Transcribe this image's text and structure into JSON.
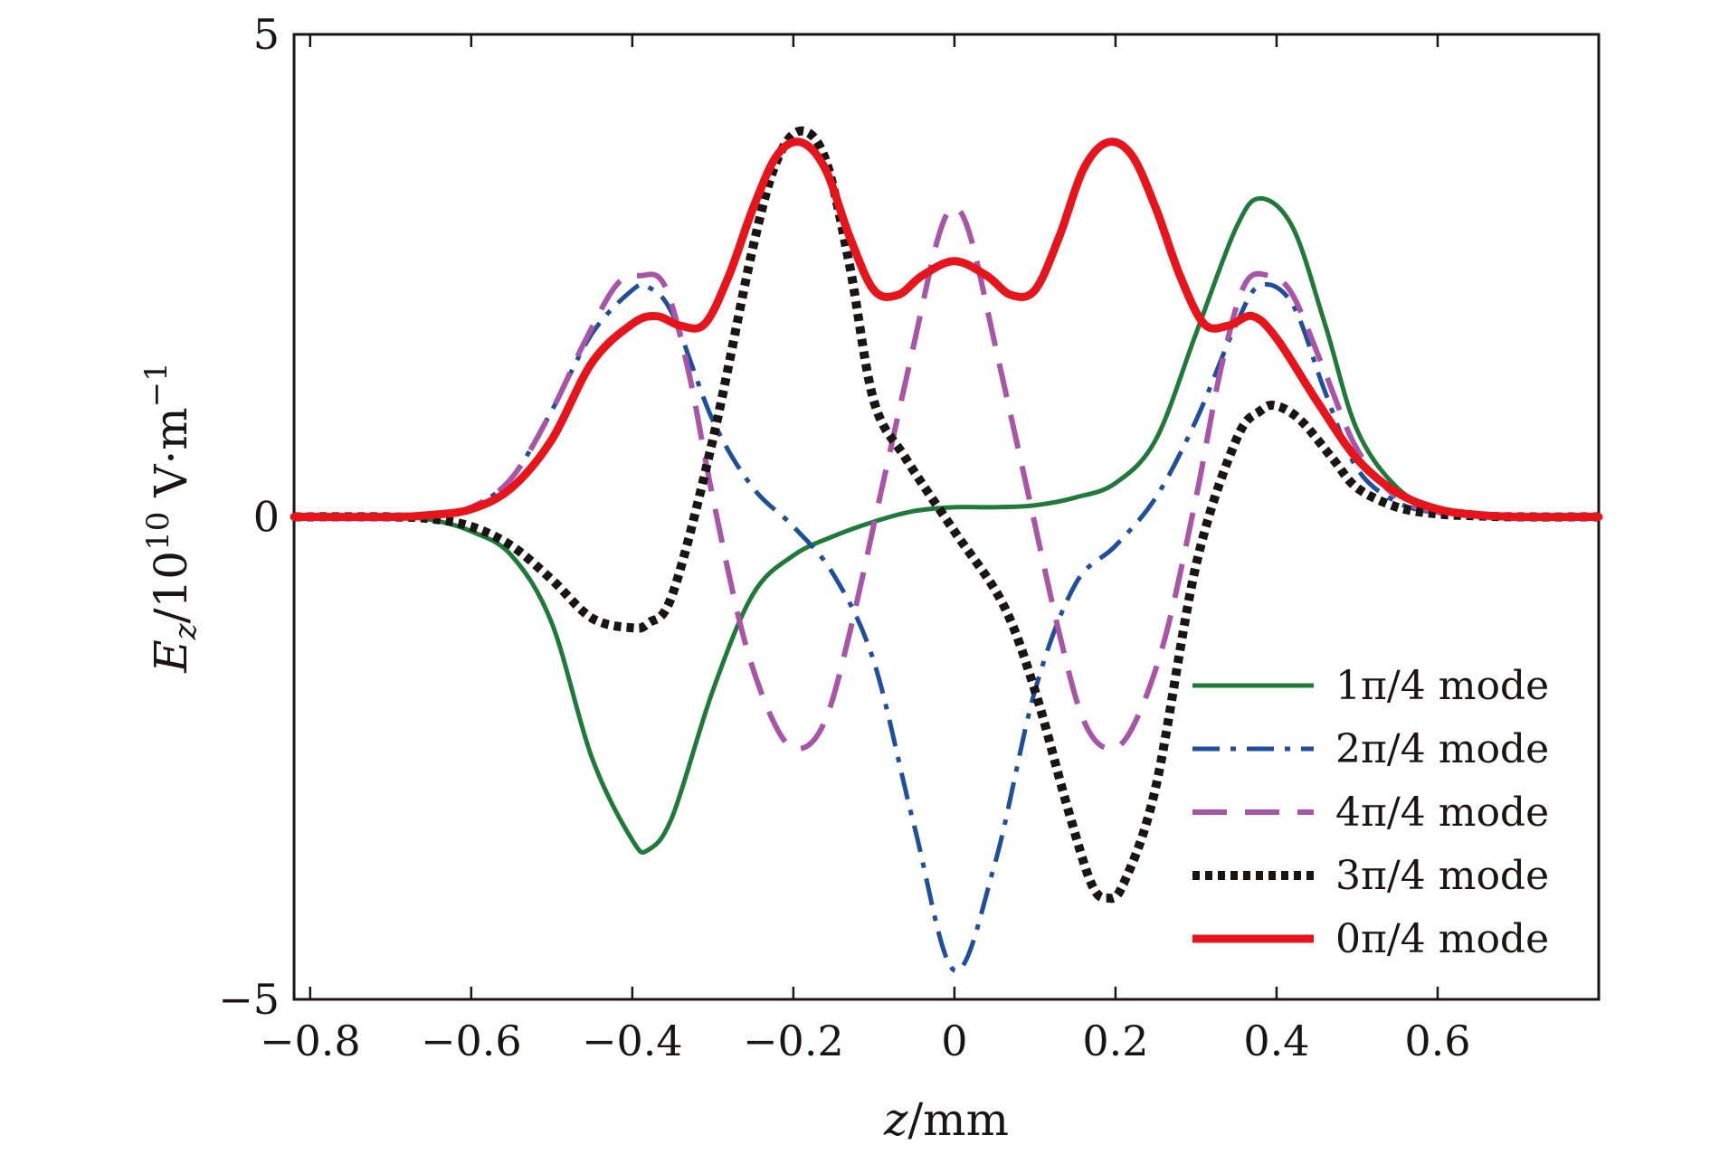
{
  "chart_data": {
    "type": "line",
    "title": "",
    "xlabel": "z/mm",
    "ylabel": "Ez/10^10 V·m^-1",
    "xlabel_parts": {
      "var": "z",
      "rest": "/mm"
    },
    "ylabel_parts": {
      "var": "E",
      "sub": "z",
      "mid": "/10",
      "exp": "10",
      "unit": " V·m",
      "unit_exp": "−1"
    },
    "xlim": [
      -0.82,
      0.8
    ],
    "ylim": [
      -5,
      5
    ],
    "xticks": [
      -0.8,
      -0.6,
      -0.4,
      -0.2,
      0,
      0.2,
      0.4,
      0.6
    ],
    "xtick_labels": [
      "−0.8",
      "−0.6",
      "−0.4",
      "−0.2",
      "0",
      "0.2",
      "0.4",
      "0.6"
    ],
    "yticks": [
      -5,
      0,
      5
    ],
    "ytick_labels": [
      "−5",
      "0",
      "5"
    ],
    "grid": false,
    "legend_position": "bottom-right",
    "series": [
      {
        "name": "1π/4 mode",
        "color": "#1f7a3a",
        "style": "solid",
        "x": [
          -0.82,
          -0.7,
          -0.65,
          -0.6,
          -0.55,
          -0.5,
          -0.45,
          -0.4,
          -0.38,
          -0.35,
          -0.3,
          -0.25,
          -0.2,
          -0.15,
          -0.1,
          -0.05,
          0,
          0.05,
          0.1,
          0.15,
          0.2,
          0.25,
          0.3,
          0.35,
          0.38,
          0.42,
          0.46,
          0.5,
          0.55,
          0.6,
          0.65,
          0.7,
          0.8
        ],
        "y": [
          0,
          0,
          -0.03,
          -0.15,
          -0.4,
          -1.1,
          -2.5,
          -3.35,
          -3.45,
          -3.1,
          -1.8,
          -0.8,
          -0.4,
          -0.2,
          -0.05,
          0.06,
          0.1,
          0.1,
          0.12,
          0.2,
          0.35,
          0.8,
          1.9,
          3.0,
          3.3,
          3.0,
          2.0,
          0.9,
          0.3,
          0.08,
          0.02,
          0,
          0
        ]
      },
      {
        "name": "2π/4 mode",
        "color": "#1f4f9c",
        "style": "dashdot",
        "x": [
          -0.82,
          -0.7,
          -0.65,
          -0.6,
          -0.55,
          -0.5,
          -0.45,
          -0.4,
          -0.38,
          -0.35,
          -0.3,
          -0.25,
          -0.2,
          -0.15,
          -0.1,
          -0.05,
          0,
          0.05,
          0.1,
          0.15,
          0.2,
          0.25,
          0.3,
          0.35,
          0.38,
          0.42,
          0.46,
          0.5,
          0.55,
          0.6,
          0.65,
          0.7,
          0.8
        ],
        "y": [
          0,
          0,
          0.02,
          0.1,
          0.4,
          1.1,
          1.9,
          2.35,
          2.38,
          2.1,
          1.0,
          0.3,
          -0.1,
          -0.6,
          -1.5,
          -3.2,
          -4.7,
          -3.6,
          -1.8,
          -0.7,
          -0.3,
          0.2,
          1.0,
          2.0,
          2.4,
          2.2,
          1.3,
          0.5,
          0.15,
          0.04,
          0.01,
          0,
          0
        ]
      },
      {
        "name": "4π/4 mode",
        "color": "#a855a8",
        "style": "dashed",
        "x": [
          -0.82,
          -0.7,
          -0.65,
          -0.6,
          -0.55,
          -0.5,
          -0.46,
          -0.42,
          -0.39,
          -0.36,
          -0.33,
          -0.3,
          -0.26,
          -0.22,
          -0.19,
          -0.16,
          -0.13,
          -0.09,
          -0.05,
          -0.02,
          0,
          0.02,
          0.05,
          0.09,
          0.13,
          0.16,
          0.19,
          0.22,
          0.26,
          0.3,
          0.33,
          0.36,
          0.39,
          0.42,
          0.46,
          0.5,
          0.55,
          0.6,
          0.65,
          0.7,
          0.8
        ],
        "y": [
          0,
          0,
          0.02,
          0.1,
          0.4,
          1.1,
          1.8,
          2.4,
          2.5,
          2.4,
          1.5,
          0.2,
          -1.3,
          -2.2,
          -2.4,
          -2.1,
          -1.2,
          0.3,
          1.8,
          2.9,
          3.2,
          2.9,
          1.8,
          0.3,
          -1.2,
          -2.1,
          -2.4,
          -2.2,
          -1.3,
          0.2,
          1.5,
          2.4,
          2.5,
          2.3,
          1.5,
          0.7,
          0.2,
          0.05,
          0.01,
          0,
          0
        ]
      },
      {
        "name": "3π/4 mode",
        "color": "#1a1414",
        "style": "dotted",
        "x": [
          -0.82,
          -0.7,
          -0.65,
          -0.6,
          -0.55,
          -0.5,
          -0.45,
          -0.4,
          -0.38,
          -0.35,
          -0.3,
          -0.25,
          -0.22,
          -0.19,
          -0.16,
          -0.13,
          -0.1,
          -0.06,
          0,
          0.06,
          0.1,
          0.14,
          0.17,
          0.19,
          0.21,
          0.25,
          0.3,
          0.35,
          0.38,
          0.4,
          0.43,
          0.47,
          0.5,
          0.55,
          0.6,
          0.65,
          0.7,
          0.8
        ],
        "y": [
          0,
          0,
          -0.02,
          -0.1,
          -0.3,
          -0.65,
          -1.05,
          -1.15,
          -1.1,
          -0.8,
          0.8,
          2.8,
          3.7,
          4.0,
          3.7,
          2.6,
          1.2,
          0.6,
          -0.15,
          -0.9,
          -1.8,
          -3.0,
          -3.8,
          -3.95,
          -3.8,
          -2.8,
          -0.5,
          0.8,
          1.1,
          1.15,
          1.0,
          0.6,
          0.3,
          0.1,
          0.03,
          0.01,
          0,
          0
        ]
      },
      {
        "name": "0π/4 mode",
        "color": "#e8141b",
        "style": "solid-thick",
        "x": [
          -0.82,
          -0.7,
          -0.65,
          -0.6,
          -0.55,
          -0.5,
          -0.45,
          -0.4,
          -0.37,
          -0.34,
          -0.31,
          -0.28,
          -0.25,
          -0.22,
          -0.19,
          -0.16,
          -0.13,
          -0.1,
          -0.07,
          -0.04,
          0,
          0.04,
          0.07,
          0.1,
          0.13,
          0.16,
          0.19,
          0.22,
          0.25,
          0.28,
          0.31,
          0.34,
          0.37,
          0.4,
          0.45,
          0.5,
          0.55,
          0.6,
          0.65,
          0.7,
          0.8
        ],
        "y": [
          0,
          0,
          0.02,
          0.08,
          0.3,
          0.8,
          1.6,
          2.0,
          2.08,
          1.98,
          2.0,
          2.5,
          3.2,
          3.75,
          3.88,
          3.6,
          2.9,
          2.35,
          2.3,
          2.5,
          2.65,
          2.5,
          2.3,
          2.35,
          2.9,
          3.6,
          3.88,
          3.75,
          3.2,
          2.5,
          2.0,
          1.98,
          2.08,
          1.85,
          1.2,
          0.6,
          0.25,
          0.08,
          0.02,
          0,
          0
        ]
      }
    ]
  }
}
